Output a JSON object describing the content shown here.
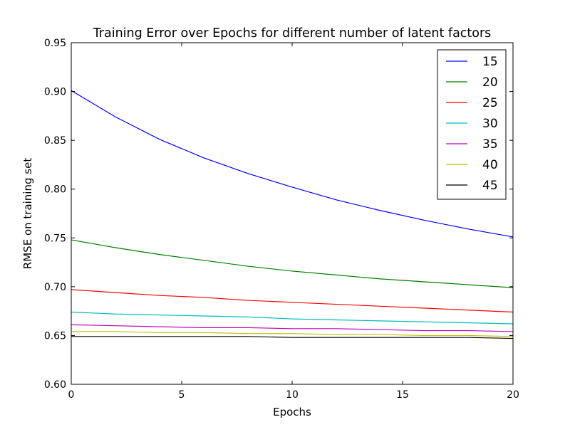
{
  "chart_data": {
    "type": "line",
    "title": "Training Error over Epochs for different number of latent factors",
    "xlabel": "Epochs",
    "ylabel": "RMSE on training set",
    "xlim": [
      0,
      20
    ],
    "ylim": [
      0.6,
      0.95
    ],
    "xticks": [
      0,
      5,
      10,
      15,
      20
    ],
    "yticks": [
      0.6,
      0.65,
      0.7,
      0.75,
      0.8,
      0.85,
      0.9,
      0.95
    ],
    "grid": false,
    "legend_position": "top-right",
    "x": [
      0,
      2,
      4,
      6,
      8,
      10,
      12,
      14,
      16,
      18,
      20
    ],
    "series": [
      {
        "name": "15",
        "color": "#0000ff",
        "values": [
          0.901,
          0.874,
          0.851,
          0.832,
          0.816,
          0.802,
          0.789,
          0.778,
          0.768,
          0.759,
          0.751
        ]
      },
      {
        "name": "20",
        "color": "#008000",
        "values": [
          0.748,
          0.74,
          0.733,
          0.727,
          0.721,
          0.716,
          0.712,
          0.708,
          0.705,
          0.702,
          0.699
        ]
      },
      {
        "name": "25",
        "color": "#ff0000",
        "values": [
          0.697,
          0.694,
          0.691,
          0.689,
          0.686,
          0.684,
          0.682,
          0.68,
          0.678,
          0.676,
          0.674
        ]
      },
      {
        "name": "30",
        "color": "#00bfbf",
        "values": [
          0.674,
          0.672,
          0.671,
          0.67,
          0.669,
          0.667,
          0.666,
          0.665,
          0.664,
          0.663,
          0.662
        ]
      },
      {
        "name": "35",
        "color": "#bf00bf",
        "values": [
          0.661,
          0.66,
          0.659,
          0.658,
          0.658,
          0.657,
          0.657,
          0.656,
          0.655,
          0.655,
          0.654
        ]
      },
      {
        "name": "40",
        "color": "#bfbf00",
        "values": [
          0.654,
          0.654,
          0.653,
          0.653,
          0.652,
          0.652,
          0.651,
          0.651,
          0.65,
          0.65,
          0.649
        ]
      },
      {
        "name": "45",
        "color": "#000000",
        "values": [
          0.649,
          0.649,
          0.649,
          0.649,
          0.649,
          0.648,
          0.648,
          0.648,
          0.648,
          0.648,
          0.647
        ]
      }
    ]
  }
}
